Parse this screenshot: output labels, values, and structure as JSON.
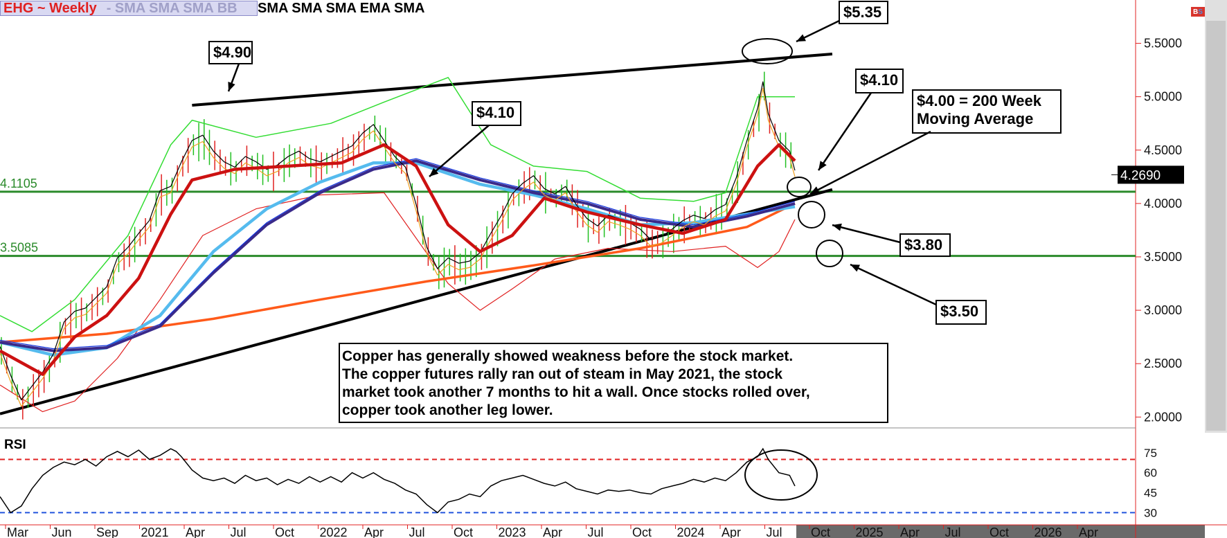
{
  "header": {
    "symbol": "EHG ~ Weekly",
    "studies_faded": "-  SMA SMA SMA BB",
    "studies": "SMA SMA SMA EMA SMA"
  },
  "icons": {
    "bs": "bs-toggle-icon"
  },
  "colors": {
    "bars_up": "#22c022",
    "bars_down": "#e02020",
    "bollinger": "#33dd33",
    "sma_fast": "#f0a020",
    "sma_black": "#000000",
    "sma_red_thick": "#cc1111",
    "sma_blue": "#1133dd",
    "ema_lightblue": "#55bbee",
    "sma_purple": "#3a2a8a",
    "sma_200": "#ff5a1a",
    "support_line": "#2a8a2a",
    "rsi_over": "#e02020",
    "rsi_under": "#2255dd"
  },
  "chart_data": {
    "type": "line",
    "price_axis": {
      "ticks": [
        "5.5000",
        "5.0000",
        "4.5000",
        "4.0000",
        "3.5000",
        "3.0000",
        "2.5000",
        "2.0000"
      ],
      "ylim": [
        1.95,
        5.75
      ],
      "last_price": "4.2690"
    },
    "time_axis": {
      "labels": [
        "Mar",
        "Jun",
        "Sep",
        "2021",
        "Apr",
        "Jul",
        "Oct",
        "2022",
        "Apr",
        "Jul",
        "Oct",
        "2023",
        "Apr",
        "Jul",
        "Oct",
        "2024",
        "Apr",
        "Jul",
        "Oct",
        "2025",
        "Apr",
        "Jul",
        "Oct",
        "2026",
        "Apr"
      ]
    },
    "price_series": [
      {
        "t": 0,
        "v": 2.62
      },
      {
        "t": 2,
        "v": 2.35
      },
      {
        "t": 4,
        "v": 2.12
      },
      {
        "t": 6,
        "v": 2.25
      },
      {
        "t": 8,
        "v": 2.38
      },
      {
        "t": 10,
        "v": 2.55
      },
      {
        "t": 12,
        "v": 2.85
      },
      {
        "t": 14,
        "v": 2.95
      },
      {
        "t": 16,
        "v": 2.98
      },
      {
        "t": 18,
        "v": 3.08
      },
      {
        "t": 20,
        "v": 3.18
      },
      {
        "t": 22,
        "v": 3.45
      },
      {
        "t": 24,
        "v": 3.55
      },
      {
        "t": 26,
        "v": 3.68
      },
      {
        "t": 28,
        "v": 3.8
      },
      {
        "t": 30,
        "v": 4.08
      },
      {
        "t": 32,
        "v": 4.12
      },
      {
        "t": 34,
        "v": 4.35
      },
      {
        "t": 36,
        "v": 4.55
      },
      {
        "t": 38,
        "v": 4.6
      },
      {
        "t": 40,
        "v": 4.45
      },
      {
        "t": 42,
        "v": 4.35
      },
      {
        "t": 44,
        "v": 4.3
      },
      {
        "t": 46,
        "v": 4.4
      },
      {
        "t": 48,
        "v": 4.35
      },
      {
        "t": 50,
        "v": 4.28
      },
      {
        "t": 52,
        "v": 4.32
      },
      {
        "t": 54,
        "v": 4.4
      },
      {
        "t": 56,
        "v": 4.45
      },
      {
        "t": 58,
        "v": 4.38
      },
      {
        "t": 60,
        "v": 4.35
      },
      {
        "t": 62,
        "v": 4.4
      },
      {
        "t": 64,
        "v": 4.45
      },
      {
        "t": 66,
        "v": 4.5
      },
      {
        "t": 68,
        "v": 4.62
      },
      {
        "t": 70,
        "v": 4.7
      },
      {
        "t": 72,
        "v": 4.55
      },
      {
        "t": 74,
        "v": 4.4
      },
      {
        "t": 76,
        "v": 4.3
      },
      {
        "t": 78,
        "v": 3.95
      },
      {
        "t": 80,
        "v": 3.55
      },
      {
        "t": 82,
        "v": 3.35
      },
      {
        "t": 84,
        "v": 3.45
      },
      {
        "t": 86,
        "v": 3.4
      },
      {
        "t": 88,
        "v": 3.42
      },
      {
        "t": 90,
        "v": 3.5
      },
      {
        "t": 92,
        "v": 3.68
      },
      {
        "t": 94,
        "v": 3.85
      },
      {
        "t": 96,
        "v": 4.05
      },
      {
        "t": 98,
        "v": 4.15
      },
      {
        "t": 100,
        "v": 4.22
      },
      {
        "t": 102,
        "v": 4.1
      },
      {
        "t": 104,
        "v": 4.05
      },
      {
        "t": 106,
        "v": 4.12
      },
      {
        "t": 108,
        "v": 3.95
      },
      {
        "t": 110,
        "v": 3.82
      },
      {
        "t": 112,
        "v": 3.75
      },
      {
        "t": 114,
        "v": 3.85
      },
      {
        "t": 116,
        "v": 3.82
      },
      {
        "t": 118,
        "v": 3.78
      },
      {
        "t": 120,
        "v": 3.72
      },
      {
        "t": 122,
        "v": 3.62
      },
      {
        "t": 124,
        "v": 3.65
      },
      {
        "t": 126,
        "v": 3.72
      },
      {
        "t": 128,
        "v": 3.8
      },
      {
        "t": 130,
        "v": 3.85
      },
      {
        "t": 132,
        "v": 3.82
      },
      {
        "t": 134,
        "v": 3.9
      },
      {
        "t": 136,
        "v": 3.95
      },
      {
        "t": 138,
        "v": 4.2
      },
      {
        "t": 140,
        "v": 4.55
      },
      {
        "t": 142,
        "v": 4.85
      },
      {
        "t": 143,
        "v": 5.1
      },
      {
        "t": 144,
        "v": 4.8
      },
      {
        "t": 146,
        "v": 4.55
      },
      {
        "t": 148,
        "v": 4.45
      },
      {
        "t": 149,
        "v": 4.27
      }
    ],
    "sma_200_series": [
      {
        "t": 0,
        "v": 2.7
      },
      {
        "t": 20,
        "v": 2.78
      },
      {
        "t": 40,
        "v": 2.92
      },
      {
        "t": 60,
        "v": 3.1
      },
      {
        "t": 80,
        "v": 3.27
      },
      {
        "t": 100,
        "v": 3.42
      },
      {
        "t": 120,
        "v": 3.58
      },
      {
        "t": 140,
        "v": 3.78
      },
      {
        "t": 149,
        "v": 4.0
      }
    ],
    "ema_lightblue_series": [
      {
        "t": 0,
        "v": 2.7
      },
      {
        "t": 10,
        "v": 2.58
      },
      {
        "t": 20,
        "v": 2.65
      },
      {
        "t": 30,
        "v": 2.95
      },
      {
        "t": 40,
        "v": 3.55
      },
      {
        "t": 50,
        "v": 3.95
      },
      {
        "t": 60,
        "v": 4.2
      },
      {
        "t": 70,
        "v": 4.38
      },
      {
        "t": 78,
        "v": 4.38
      },
      {
        "t": 90,
        "v": 4.18
      },
      {
        "t": 100,
        "v": 4.08
      },
      {
        "t": 110,
        "v": 3.95
      },
      {
        "t": 120,
        "v": 3.8
      },
      {
        "t": 130,
        "v": 3.82
      },
      {
        "t": 140,
        "v": 3.9
      },
      {
        "t": 149,
        "v": 3.97
      }
    ],
    "sma_purple_series": [
      {
        "t": 0,
        "v": 2.7
      },
      {
        "t": 10,
        "v": 2.62
      },
      {
        "t": 20,
        "v": 2.65
      },
      {
        "t": 30,
        "v": 2.85
      },
      {
        "t": 40,
        "v": 3.35
      },
      {
        "t": 50,
        "v": 3.8
      },
      {
        "t": 60,
        "v": 4.1
      },
      {
        "t": 70,
        "v": 4.32
      },
      {
        "t": 78,
        "v": 4.4
      },
      {
        "t": 90,
        "v": 4.22
      },
      {
        "t": 100,
        "v": 4.1
      },
      {
        "t": 110,
        "v": 4.0
      },
      {
        "t": 120,
        "v": 3.85
      },
      {
        "t": 130,
        "v": 3.78
      },
      {
        "t": 140,
        "v": 3.88
      },
      {
        "t": 149,
        "v": 4.0
      }
    ],
    "sma_red_series": [
      {
        "t": 0,
        "v": 2.62
      },
      {
        "t": 8,
        "v": 2.4
      },
      {
        "t": 14,
        "v": 2.75
      },
      {
        "t": 20,
        "v": 2.95
      },
      {
        "t": 26,
        "v": 3.3
      },
      {
        "t": 32,
        "v": 3.9
      },
      {
        "t": 36,
        "v": 4.22
      },
      {
        "t": 44,
        "v": 4.32
      },
      {
        "t": 54,
        "v": 4.35
      },
      {
        "t": 64,
        "v": 4.38
      },
      {
        "t": 72,
        "v": 4.55
      },
      {
        "t": 78,
        "v": 4.35
      },
      {
        "t": 84,
        "v": 3.8
      },
      {
        "t": 90,
        "v": 3.55
      },
      {
        "t": 96,
        "v": 3.7
      },
      {
        "t": 102,
        "v": 4.05
      },
      {
        "t": 110,
        "v": 3.92
      },
      {
        "t": 120,
        "v": 3.8
      },
      {
        "t": 128,
        "v": 3.72
      },
      {
        "t": 136,
        "v": 3.85
      },
      {
        "t": 142,
        "v": 4.35
      },
      {
        "t": 146,
        "v": 4.55
      },
      {
        "t": 149,
        "v": 4.4
      }
    ],
    "bb_upper_series": [
      {
        "t": 0,
        "v": 2.95
      },
      {
        "t": 6,
        "v": 2.8
      },
      {
        "t": 14,
        "v": 3.1
      },
      {
        "t": 24,
        "v": 3.7
      },
      {
        "t": 32,
        "v": 4.55
      },
      {
        "t": 36,
        "v": 4.78
      },
      {
        "t": 48,
        "v": 4.62
      },
      {
        "t": 62,
        "v": 4.75
      },
      {
        "t": 72,
        "v": 4.95
      },
      {
        "t": 84,
        "v": 5.18
      },
      {
        "t": 92,
        "v": 4.55
      },
      {
        "t": 100,
        "v": 4.35
      },
      {
        "t": 110,
        "v": 4.3
      },
      {
        "t": 120,
        "v": 4.05
      },
      {
        "t": 130,
        "v": 4.02
      },
      {
        "t": 136,
        "v": 4.1
      },
      {
        "t": 142,
        "v": 5.0
      },
      {
        "t": 149,
        "v": 5.0
      }
    ],
    "bb_lower_series": [
      {
        "t": 0,
        "v": 2.3
      },
      {
        "t": 8,
        "v": 2.05
      },
      {
        "t": 14,
        "v": 2.15
      },
      {
        "t": 22,
        "v": 2.55
      },
      {
        "t": 30,
        "v": 3.1
      },
      {
        "t": 38,
        "v": 3.7
      },
      {
        "t": 48,
        "v": 3.95
      },
      {
        "t": 60,
        "v": 4.08
      },
      {
        "t": 72,
        "v": 4.1
      },
      {
        "t": 84,
        "v": 3.25
      },
      {
        "t": 90,
        "v": 3.0
      },
      {
        "t": 96,
        "v": 3.2
      },
      {
        "t": 104,
        "v": 3.48
      },
      {
        "t": 114,
        "v": 3.58
      },
      {
        "t": 126,
        "v": 3.55
      },
      {
        "t": 136,
        "v": 3.6
      },
      {
        "t": 142,
        "v": 3.4
      },
      {
        "t": 146,
        "v": 3.55
      },
      {
        "t": 149,
        "v": 3.85
      }
    ],
    "support_levels": [
      {
        "label": "4.1105",
        "value": 4.1105
      },
      {
        "label": "3.5085",
        "value": 3.5085
      }
    ],
    "trendlines": [
      {
        "name": "upper",
        "from": {
          "t": 36,
          "v": 4.92
        },
        "to": {
          "t": 156,
          "v": 5.4
        }
      },
      {
        "name": "lower",
        "from": {
          "t": 0,
          "v": 2.03
        },
        "to": {
          "t": 156,
          "v": 4.13
        }
      }
    ],
    "callouts": [
      {
        "label": "$4.90"
      },
      {
        "label": "$5.35"
      },
      {
        "label": "$4.10"
      },
      {
        "label": "$4.10"
      },
      {
        "label": "$4.00 = 200 Week\nMoving Average"
      },
      {
        "label": "$3.80"
      },
      {
        "label": "$3.50"
      }
    ],
    "annotation": "Copper has generally showed weakness before the stock market.\nThe copper futures rally ran out of steam in May 2021, the stock\nmarket took another 7 months to hit a wall.  Once stocks rolled over,\n copper took another leg lower.",
    "rsi": {
      "label": "RSI",
      "ticks": [
        "75",
        "60",
        "45",
        "30"
      ],
      "overbought": 70,
      "oversold": 30,
      "series": [
        {
          "t": 0,
          "v": 42
        },
        {
          "t": 2,
          "v": 30
        },
        {
          "t": 4,
          "v": 35
        },
        {
          "t": 6,
          "v": 48
        },
        {
          "t": 8,
          "v": 58
        },
        {
          "t": 10,
          "v": 64
        },
        {
          "t": 12,
          "v": 68
        },
        {
          "t": 14,
          "v": 66
        },
        {
          "t": 16,
          "v": 70
        },
        {
          "t": 18,
          "v": 65
        },
        {
          "t": 20,
          "v": 72
        },
        {
          "t": 22,
          "v": 76
        },
        {
          "t": 24,
          "v": 72
        },
        {
          "t": 26,
          "v": 77
        },
        {
          "t": 28,
          "v": 70
        },
        {
          "t": 30,
          "v": 73
        },
        {
          "t": 32,
          "v": 78
        },
        {
          "t": 33,
          "v": 76
        },
        {
          "t": 34,
          "v": 72
        },
        {
          "t": 36,
          "v": 62
        },
        {
          "t": 38,
          "v": 56
        },
        {
          "t": 40,
          "v": 54
        },
        {
          "t": 42,
          "v": 56
        },
        {
          "t": 44,
          "v": 52
        },
        {
          "t": 46,
          "v": 58
        },
        {
          "t": 48,
          "v": 54
        },
        {
          "t": 50,
          "v": 56
        },
        {
          "t": 52,
          "v": 51
        },
        {
          "t": 54,
          "v": 55
        },
        {
          "t": 56,
          "v": 52
        },
        {
          "t": 58,
          "v": 57
        },
        {
          "t": 60,
          "v": 53
        },
        {
          "t": 62,
          "v": 57
        },
        {
          "t": 64,
          "v": 53
        },
        {
          "t": 66,
          "v": 60
        },
        {
          "t": 68,
          "v": 56
        },
        {
          "t": 70,
          "v": 60
        },
        {
          "t": 72,
          "v": 55
        },
        {
          "t": 74,
          "v": 52
        },
        {
          "t": 76,
          "v": 47
        },
        {
          "t": 78,
          "v": 44
        },
        {
          "t": 80,
          "v": 36
        },
        {
          "t": 82,
          "v": 30
        },
        {
          "t": 84,
          "v": 38
        },
        {
          "t": 86,
          "v": 40
        },
        {
          "t": 88,
          "v": 44
        },
        {
          "t": 90,
          "v": 42
        },
        {
          "t": 92,
          "v": 50
        },
        {
          "t": 94,
          "v": 54
        },
        {
          "t": 96,
          "v": 56
        },
        {
          "t": 98,
          "v": 58
        },
        {
          "t": 100,
          "v": 55
        },
        {
          "t": 102,
          "v": 52
        },
        {
          "t": 104,
          "v": 50
        },
        {
          "t": 106,
          "v": 53
        },
        {
          "t": 108,
          "v": 48
        },
        {
          "t": 110,
          "v": 46
        },
        {
          "t": 112,
          "v": 44
        },
        {
          "t": 114,
          "v": 47
        },
        {
          "t": 116,
          "v": 46
        },
        {
          "t": 118,
          "v": 47
        },
        {
          "t": 120,
          "v": 45
        },
        {
          "t": 122,
          "v": 44
        },
        {
          "t": 124,
          "v": 48
        },
        {
          "t": 126,
          "v": 50
        },
        {
          "t": 128,
          "v": 52
        },
        {
          "t": 130,
          "v": 55
        },
        {
          "t": 132,
          "v": 53
        },
        {
          "t": 134,
          "v": 56
        },
        {
          "t": 136,
          "v": 54
        },
        {
          "t": 138,
          "v": 60
        },
        {
          "t": 140,
          "v": 68
        },
        {
          "t": 142,
          "v": 72
        },
        {
          "t": 143,
          "v": 78
        },
        {
          "t": 144,
          "v": 70
        },
        {
          "t": 146,
          "v": 60
        },
        {
          "t": 148,
          "v": 58
        },
        {
          "t": 149,
          "v": 50
        }
      ]
    }
  }
}
